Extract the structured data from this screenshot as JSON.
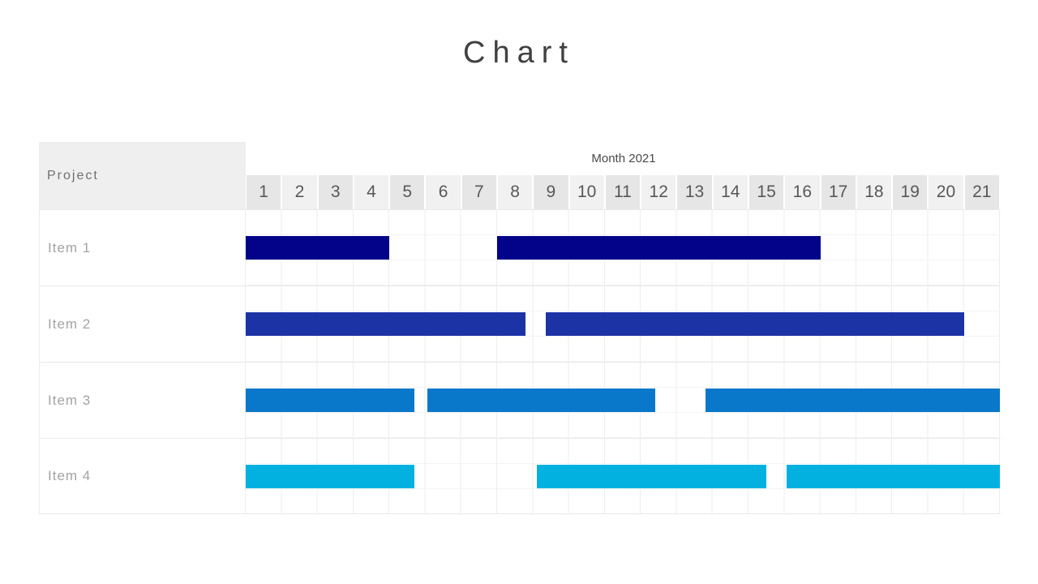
{
  "title": "Chart",
  "table": {
    "project_header": "Project",
    "month_header": "Month 2021"
  },
  "chart_data": {
    "type": "bar",
    "subtype": "gantt",
    "title": "Chart",
    "xlabel": "Month 2021",
    "x_ticks": [
      "1",
      "2",
      "3",
      "4",
      "5",
      "6",
      "7",
      "8",
      "9",
      "10",
      "11",
      "12",
      "13",
      "14",
      "15",
      "16",
      "17",
      "18",
      "19",
      "20",
      "21"
    ],
    "x_range": [
      1,
      21
    ],
    "row_header": "Project",
    "items": [
      {
        "label": "Item 1",
        "color": "#03038a",
        "bars": [
          {
            "start": 0.0,
            "end": 4.0
          },
          {
            "start": 7.0,
            "end": 16.0
          }
        ]
      },
      {
        "label": "Item 2",
        "color": "#1c33a6",
        "bars": [
          {
            "start": 0.0,
            "end": 7.8
          },
          {
            "start": 8.35,
            "end": 20.0
          }
        ]
      },
      {
        "label": "Item 3",
        "color": "#0978ca",
        "bars": [
          {
            "start": 0.0,
            "end": 4.7
          },
          {
            "start": 5.05,
            "end": 11.4
          },
          {
            "start": 12.8,
            "end": 21.0
          }
        ]
      },
      {
        "label": "Item 4",
        "color": "#03b1e1",
        "bars": [
          {
            "start": 0.0,
            "end": 4.7
          },
          {
            "start": 8.1,
            "end": 14.5
          },
          {
            "start": 15.05,
            "end": 21.0
          }
        ]
      }
    ],
    "legend": null,
    "grid": true
  },
  "colors": {
    "title_text": "#404040",
    "header_bg": "#efefef",
    "month_cell_odd": "#e6e6e6",
    "month_cell_even": "#f1f1f1",
    "grid_line": "#ededed",
    "row_label_text": "#a3a3a3",
    "month_number_text": "#585858"
  }
}
